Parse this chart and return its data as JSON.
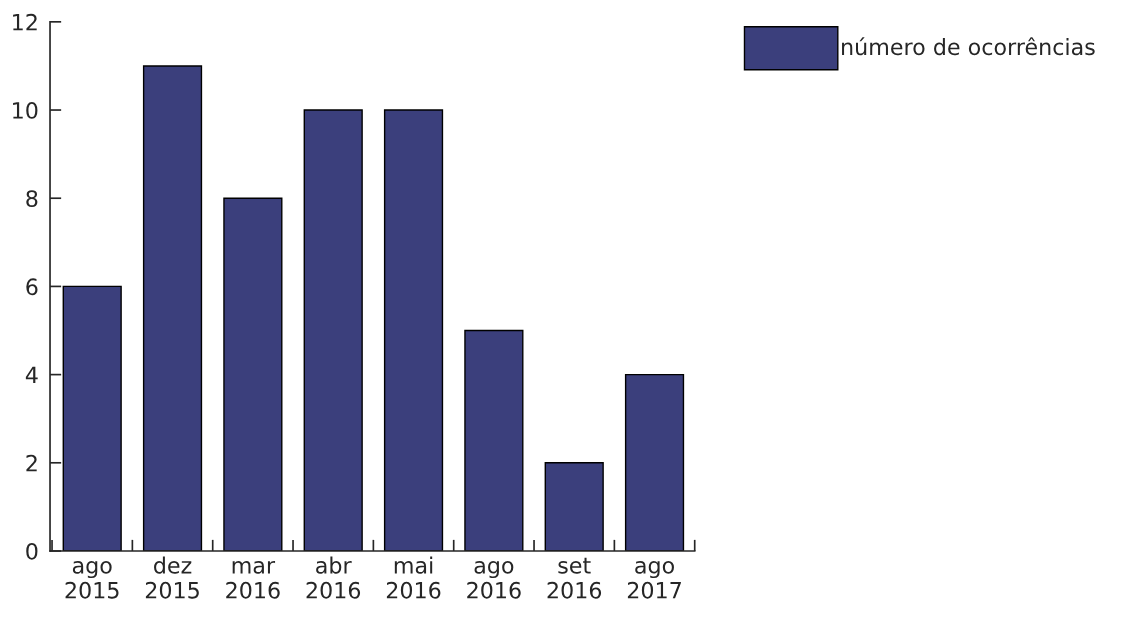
{
  "chart_data": {
    "type": "bar",
    "categories": [
      "ago\n2015",
      "dez\n2015",
      "mar\n2016",
      "abr\n2016",
      "mai\n2016",
      "ago\n2016",
      "set\n2016",
      "ago\n2017"
    ],
    "series": [
      {
        "name": "número de ocorrências",
        "color": "#3b3f7c",
        "values": [
          6,
          11,
          8,
          10,
          10,
          5,
          2,
          4
        ]
      }
    ],
    "ylim": [
      0,
      12
    ],
    "yticks": [
      0,
      2,
      4,
      6,
      8,
      10,
      12
    ],
    "grid": false,
    "legend": "top right"
  }
}
